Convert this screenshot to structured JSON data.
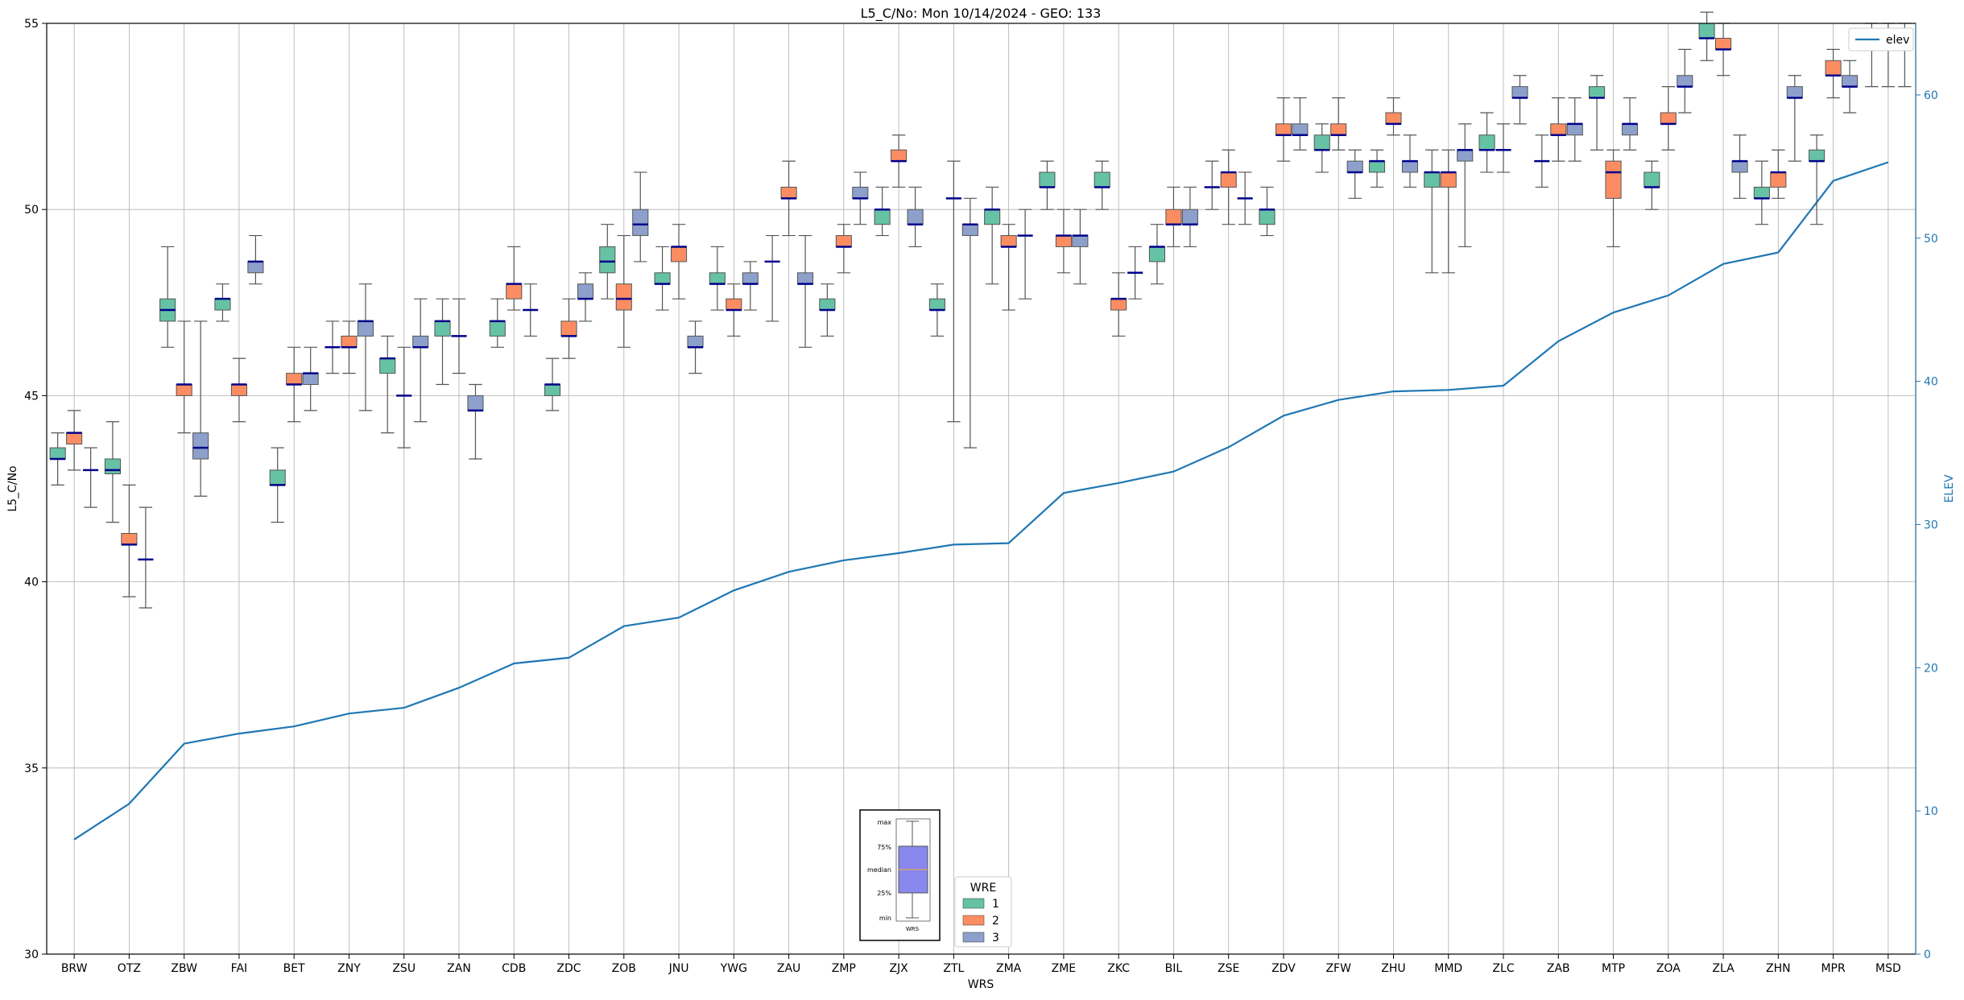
{
  "chart_data": {
    "type": "box",
    "title": "L5_C/No: Mon 10/14/2024 - GEO: 133",
    "xlabel": "WRS",
    "ylabel": "L5_C/No",
    "y2label": "ELEV",
    "ylim": [
      30,
      55
    ],
    "y2lim": [
      0,
      65
    ],
    "yticks": [
      30,
      35,
      40,
      45,
      50,
      55
    ],
    "y2ticks": [
      0,
      10,
      20,
      30,
      40,
      50,
      60
    ],
    "grid": true,
    "colors": {
      "wre1": "#66c2a5",
      "wre2": "#fc8d62",
      "wre3": "#8da0cb",
      "elev": "#1f77b4",
      "median": "#00008b"
    },
    "categories": [
      "BRW",
      "OTZ",
      "ZBW",
      "FAI",
      "BET",
      "ZNY",
      "ZSU",
      "ZAN",
      "CDB",
      "ZDC",
      "ZOB",
      "JNU",
      "YWG",
      "ZAU",
      "ZMP",
      "ZJX",
      "ZTL",
      "ZMA",
      "ZME",
      "ZKC",
      "BIL",
      "ZSE",
      "ZDV",
      "ZFW",
      "ZHU",
      "MMD",
      "ZLC",
      "ZAB",
      "MTP",
      "ZOA",
      "ZLA",
      "ZHN",
      "MPR",
      "MSD"
    ],
    "boxes": [
      [
        [
          42.6,
          43.3,
          43.3,
          43.6,
          44.0
        ],
        [
          43.0,
          43.7,
          44.0,
          44.0,
          44.6
        ],
        [
          42.0,
          43.0,
          43.0,
          43.0,
          43.6
        ]
      ],
      [
        [
          41.6,
          42.9,
          43.0,
          43.3,
          44.3
        ],
        [
          39.6,
          41.0,
          41.0,
          41.3,
          42.6
        ],
        [
          39.3,
          40.6,
          40.6,
          40.6,
          42.0
        ]
      ],
      [
        [
          46.3,
          47.0,
          47.3,
          47.6,
          49.0
        ],
        [
          44.0,
          45.0,
          45.3,
          45.3,
          47.0
        ],
        [
          42.3,
          43.3,
          43.6,
          44.0,
          47.0
        ]
      ],
      [
        [
          47.0,
          47.3,
          47.6,
          47.6,
          48.0
        ],
        [
          44.3,
          45.0,
          45.3,
          45.3,
          46.0
        ],
        [
          48.0,
          48.3,
          48.6,
          48.6,
          49.3
        ]
      ],
      [
        [
          41.6,
          42.6,
          42.6,
          43.0,
          43.6
        ],
        [
          44.3,
          45.3,
          45.3,
          45.6,
          46.3
        ],
        [
          44.6,
          45.3,
          45.6,
          45.6,
          46.3
        ]
      ],
      [
        [
          45.6,
          46.3,
          46.3,
          46.3,
          47.0
        ],
        [
          45.6,
          46.3,
          46.3,
          46.6,
          47.0
        ],
        [
          44.6,
          46.6,
          47.0,
          47.0,
          48.0
        ]
      ],
      [
        [
          44.0,
          45.6,
          46.0,
          46.0,
          46.6
        ],
        [
          43.6,
          45.0,
          45.0,
          45.0,
          46.3
        ],
        [
          44.3,
          46.3,
          46.3,
          46.6,
          47.6
        ]
      ],
      [
        [
          45.3,
          46.6,
          47.0,
          47.0,
          47.6
        ],
        [
          45.6,
          46.6,
          46.6,
          46.6,
          47.6
        ],
        [
          43.3,
          44.6,
          44.6,
          45.0,
          45.3
        ]
      ],
      [
        [
          46.3,
          46.6,
          47.0,
          47.0,
          47.6
        ],
        [
          47.3,
          47.6,
          48.0,
          48.0,
          49.0
        ],
        [
          46.6,
          47.3,
          47.3,
          47.3,
          48.0
        ]
      ],
      [
        [
          44.6,
          45.0,
          45.3,
          45.3,
          46.0
        ],
        [
          46.0,
          46.6,
          46.6,
          47.0,
          47.6
        ],
        [
          47.0,
          47.6,
          47.6,
          48.0,
          48.3
        ]
      ],
      [
        [
          47.6,
          48.3,
          48.6,
          49.0,
          49.6
        ],
        [
          46.3,
          47.3,
          47.6,
          48.0,
          49.3
        ],
        [
          48.6,
          49.3,
          49.6,
          50.0,
          51.0
        ]
      ],
      [
        [
          47.3,
          48.0,
          48.0,
          48.3,
          49.0
        ],
        [
          47.6,
          48.6,
          49.0,
          49.0,
          49.6
        ],
        [
          45.6,
          46.3,
          46.3,
          46.6,
          47.0
        ]
      ],
      [
        [
          47.3,
          48.0,
          48.0,
          48.3,
          49.0
        ],
        [
          46.6,
          47.3,
          47.3,
          47.6,
          48.0
        ],
        [
          47.3,
          48.0,
          48.0,
          48.3,
          48.6
        ]
      ],
      [
        [
          47.0,
          48.6,
          48.6,
          48.6,
          49.3
        ],
        [
          49.3,
          50.3,
          50.3,
          50.6,
          51.3
        ],
        [
          46.3,
          48.0,
          48.0,
          48.3,
          49.3
        ]
      ],
      [
        [
          46.6,
          47.3,
          47.3,
          47.6,
          48.0
        ],
        [
          48.3,
          49.0,
          49.0,
          49.3,
          49.6
        ],
        [
          49.6,
          50.3,
          50.3,
          50.6,
          51.0
        ]
      ],
      [
        [
          49.3,
          49.6,
          50.0,
          50.0,
          50.6
        ],
        [
          50.6,
          51.3,
          51.3,
          51.6,
          52.0
        ],
        [
          49.0,
          49.6,
          49.6,
          50.0,
          50.6
        ]
      ],
      [
        [
          46.6,
          47.3,
          47.3,
          47.6,
          48.0
        ],
        [
          44.3,
          50.3,
          50.3,
          50.3,
          51.3
        ],
        [
          43.6,
          49.3,
          49.6,
          49.6,
          50.3
        ]
      ],
      [
        [
          48.0,
          49.6,
          50.0,
          50.0,
          50.6
        ],
        [
          47.3,
          49.0,
          49.0,
          49.3,
          49.6
        ],
        [
          47.6,
          49.3,
          49.3,
          49.3,
          50.0
        ]
      ],
      [
        [
          50.0,
          50.6,
          50.6,
          51.0,
          51.3
        ],
        [
          48.3,
          49.0,
          49.3,
          49.3,
          50.0
        ],
        [
          48.0,
          49.0,
          49.3,
          49.3,
          50.0
        ]
      ],
      [
        [
          50.0,
          50.6,
          50.6,
          51.0,
          51.3
        ],
        [
          46.6,
          47.3,
          47.6,
          47.6,
          48.3
        ],
        [
          47.6,
          48.3,
          48.3,
          48.3,
          49.0
        ]
      ],
      [
        [
          48.0,
          48.6,
          49.0,
          49.0,
          49.6
        ],
        [
          49.0,
          49.6,
          49.6,
          50.0,
          50.6
        ],
        [
          49.0,
          49.6,
          49.6,
          50.0,
          50.6
        ]
      ],
      [
        [
          50.0,
          50.6,
          50.6,
          50.6,
          51.3
        ],
        [
          49.6,
          50.6,
          51.0,
          51.0,
          51.6
        ],
        [
          49.6,
          50.3,
          50.3,
          50.3,
          51.0
        ]
      ],
      [
        [
          49.3,
          49.6,
          50.0,
          50.0,
          50.6
        ],
        [
          51.3,
          52.0,
          52.0,
          52.3,
          53.0
        ],
        [
          51.6,
          52.0,
          52.0,
          52.3,
          53.0
        ]
      ],
      [
        [
          51.0,
          51.6,
          51.6,
          52.0,
          52.3
        ],
        [
          51.6,
          52.0,
          52.0,
          52.3,
          53.0
        ],
        [
          50.3,
          51.0,
          51.0,
          51.3,
          51.6
        ]
      ],
      [
        [
          50.6,
          51.0,
          51.3,
          51.3,
          51.6
        ],
        [
          52.0,
          52.3,
          52.3,
          52.6,
          53.0
        ],
        [
          50.6,
          51.0,
          51.3,
          51.3,
          52.0
        ]
      ],
      [
        [
          48.3,
          50.6,
          51.0,
          51.0,
          51.6
        ],
        [
          48.3,
          50.6,
          51.0,
          51.0,
          51.6
        ],
        [
          49.0,
          51.3,
          51.6,
          51.6,
          52.3
        ]
      ],
      [
        [
          51.0,
          51.6,
          51.6,
          52.0,
          52.6
        ],
        [
          51.0,
          51.6,
          51.6,
          51.6,
          52.3
        ],
        [
          52.3,
          53.0,
          53.0,
          53.3,
          53.6
        ]
      ],
      [
        [
          50.6,
          51.3,
          51.3,
          51.3,
          52.0
        ],
        [
          51.3,
          52.0,
          52.0,
          52.3,
          53.0
        ],
        [
          51.3,
          52.0,
          52.3,
          52.3,
          53.0
        ]
      ],
      [
        [
          51.6,
          53.0,
          53.0,
          53.3,
          53.6
        ],
        [
          49.0,
          50.3,
          51.0,
          51.3,
          51.6
        ],
        [
          51.6,
          52.0,
          52.3,
          52.3,
          53.0
        ]
      ],
      [
        [
          50.0,
          50.6,
          50.6,
          51.0,
          51.3
        ],
        [
          51.6,
          52.3,
          52.3,
          52.6,
          53.3
        ],
        [
          52.6,
          53.3,
          53.3,
          53.6,
          54.3
        ]
      ],
      [
        [
          54.0,
          54.6,
          54.6,
          55.0,
          55.3
        ],
        [
          53.6,
          54.3,
          54.3,
          54.6,
          55.0
        ],
        [
          50.3,
          51.0,
          51.3,
          51.3,
          52.0
        ]
      ],
      [
        [
          49.6,
          50.3,
          50.3,
          50.6,
          51.3
        ],
        [
          50.3,
          50.6,
          51.0,
          51.0,
          51.6
        ],
        [
          51.3,
          53.0,
          53.0,
          53.3,
          53.6
        ]
      ],
      [
        [
          49.6,
          51.3,
          51.3,
          51.6,
          52.0
        ],
        [
          53.0,
          53.6,
          53.6,
          54.0,
          54.3
        ],
        [
          52.6,
          53.3,
          53.3,
          53.6,
          54.0
        ]
      ],
      [
        [
          53.3,
          54.3,
          54.3,
          54.6,
          55.0
        ],
        [
          53.3,
          54.3,
          54.3,
          54.6,
          55.0
        ],
        [
          53.3,
          54.3,
          54.3,
          54.6,
          55.0
        ]
      ]
    ],
    "elev": [
      8.0,
      10.5,
      14.7,
      15.4,
      15.9,
      16.8,
      17.2,
      18.6,
      20.3,
      20.7,
      22.9,
      23.5,
      25.4,
      26.7,
      27.5,
      28.0,
      28.6,
      28.7,
      32.2,
      32.9,
      33.7,
      35.4,
      37.6,
      38.7,
      39.3,
      39.4,
      39.7,
      42.8,
      44.8,
      46.0,
      48.2,
      49.0,
      54.0,
      55.3
    ],
    "legend_elev": {
      "label": "elev"
    },
    "legend_wre": {
      "title": "WRE",
      "items": [
        "1",
        "2",
        "3"
      ]
    },
    "key_labels": [
      "max",
      "75%",
      "median",
      "25%",
      "min",
      "WRS"
    ]
  }
}
